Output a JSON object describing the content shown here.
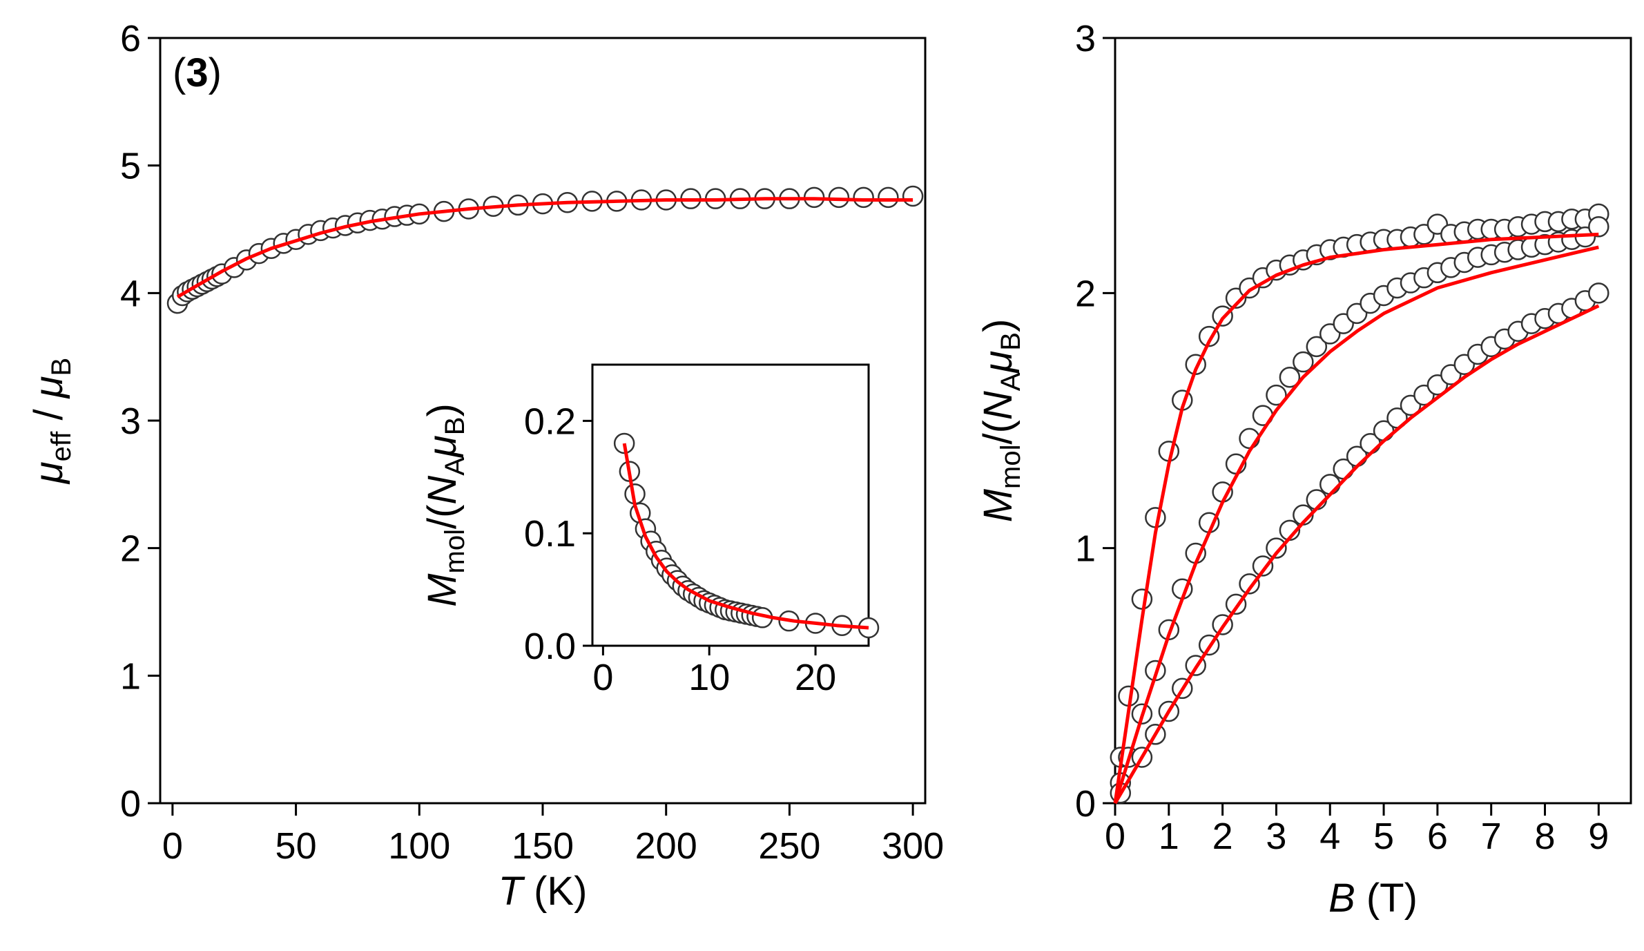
{
  "chart_data": [
    {
      "type": "scatter",
      "panel_label": "(3)",
      "xlabel": {
        "italic": "T",
        "rest": " (K)"
      },
      "ylabel": {
        "sym": "μ",
        "sub1": "eff",
        "sep": " / ",
        "sym2": "μ",
        "sub2": "B"
      },
      "xlim": [
        -5,
        305
      ],
      "ylim": [
        0,
        6
      ],
      "xticks": [
        0,
        50,
        100,
        150,
        200,
        250,
        300
      ],
      "yticks": [
        0,
        1,
        2,
        3,
        4,
        5,
        6
      ],
      "grid": false,
      "series": [
        {
          "kind": "points",
          "marker": "open-circle",
          "x": [
            2,
            4,
            6,
            8,
            10,
            12,
            14,
            16,
            18,
            20,
            25,
            30,
            35,
            40,
            45,
            50,
            55,
            60,
            65,
            70,
            75,
            80,
            85,
            90,
            95,
            100,
            110,
            120,
            130,
            140,
            150,
            160,
            170,
            180,
            190,
            200,
            210,
            220,
            230,
            240,
            250,
            260,
            270,
            280,
            290,
            300
          ],
          "y": [
            3.92,
            3.98,
            4.01,
            4.03,
            4.05,
            4.07,
            4.09,
            4.11,
            4.13,
            4.15,
            4.2,
            4.26,
            4.31,
            4.35,
            4.39,
            4.42,
            4.46,
            4.49,
            4.51,
            4.53,
            4.55,
            4.57,
            4.58,
            4.6,
            4.61,
            4.62,
            4.64,
            4.66,
            4.68,
            4.69,
            4.7,
            4.71,
            4.72,
            4.72,
            4.73,
            4.73,
            4.74,
            4.74,
            4.74,
            4.74,
            4.74,
            4.75,
            4.75,
            4.75,
            4.75,
            4.76
          ]
        },
        {
          "kind": "fit",
          "color": "#ff0000",
          "x": [
            2,
            10,
            20,
            30,
            40,
            50,
            60,
            70,
            80,
            100,
            120,
            140,
            160,
            180,
            200,
            220,
            240,
            260,
            280,
            300
          ],
          "y": [
            3.97,
            4.06,
            4.17,
            4.27,
            4.35,
            4.41,
            4.47,
            4.52,
            4.56,
            4.62,
            4.66,
            4.69,
            4.71,
            4.72,
            4.73,
            4.73,
            4.74,
            4.74,
            4.73,
            4.73
          ]
        }
      ]
    },
    {
      "type": "scatter",
      "role": "inset",
      "ylabel": {
        "sym": "M",
        "sub1": "mol",
        "sep": "/(",
        "sym2": "N",
        "sub2": "A",
        "sym3": "μ",
        "sub3": "B",
        "close": ")"
      },
      "xlim": [
        -1,
        25
      ],
      "ylim": [
        0,
        0.25
      ],
      "xticks": [
        0,
        10,
        20
      ],
      "yticks": [
        0.0,
        0.1,
        0.2
      ],
      "ytick_labels": [
        "0.0",
        "0.1",
        "0.2"
      ],
      "series": [
        {
          "kind": "points",
          "marker": "open-circle",
          "x": [
            2,
            2.5,
            3,
            3.5,
            4,
            4.5,
            5,
            5.5,
            6,
            6.5,
            7,
            7.5,
            8,
            8.5,
            9,
            9.5,
            10,
            10.5,
            11,
            11.5,
            12,
            12.5,
            13,
            13.5,
            14,
            14.5,
            15,
            17.5,
            20,
            22.5,
            25
          ],
          "y": [
            0.18,
            0.155,
            0.135,
            0.118,
            0.104,
            0.093,
            0.084,
            0.076,
            0.069,
            0.063,
            0.058,
            0.053,
            0.049,
            0.046,
            0.043,
            0.04,
            0.038,
            0.036,
            0.034,
            0.032,
            0.031,
            0.03,
            0.029,
            0.028,
            0.027,
            0.026,
            0.025,
            0.022,
            0.02,
            0.018,
            0.016
          ]
        },
        {
          "kind": "fit",
          "color": "#ff0000",
          "x": [
            2,
            3,
            4,
            5,
            6,
            7,
            8,
            10,
            12,
            14,
            16,
            18,
            20,
            22,
            25
          ],
          "y": [
            0.18,
            0.125,
            0.097,
            0.079,
            0.066,
            0.057,
            0.05,
            0.04,
            0.034,
            0.029,
            0.025,
            0.022,
            0.02,
            0.018,
            0.016
          ]
        }
      ]
    },
    {
      "type": "scatter",
      "xlabel": {
        "italic": "B",
        "rest": " (T)"
      },
      "ylabel": {
        "sym": "M",
        "sub1": "mol",
        "sep": "/(",
        "sym2": "N",
        "sub2": "A",
        "sym3": "μ",
        "sub3": "B",
        "close": ")"
      },
      "xlim": [
        0,
        9.6
      ],
      "ylim": [
        0,
        3
      ],
      "xticks": [
        0,
        1,
        2,
        3,
        4,
        5,
        6,
        7,
        8,
        9
      ],
      "yticks": [
        0,
        1,
        2,
        3
      ],
      "series": [
        {
          "kind": "points",
          "marker": "open-circle",
          "x": [
            0.1,
            0.25,
            0.5,
            0.75,
            1.0,
            1.25,
            1.5,
            1.75,
            2.0,
            2.25,
            2.5,
            2.75,
            3.0,
            3.25,
            3.5,
            3.75,
            4.0,
            4.25,
            4.5,
            4.75,
            5.0,
            5.25,
            5.5,
            5.75,
            6.0,
            6.25,
            6.5,
            6.75,
            7.0,
            7.25,
            7.5,
            7.75,
            8.0,
            8.25,
            8.5,
            8.75,
            9.0
          ],
          "y": [
            0.18,
            0.42,
            0.8,
            1.12,
            1.38,
            1.58,
            1.72,
            1.83,
            1.91,
            1.98,
            2.02,
            2.06,
            2.09,
            2.11,
            2.13,
            2.15,
            2.17,
            2.18,
            2.19,
            2.2,
            2.21,
            2.21,
            2.22,
            2.23,
            2.27,
            2.23,
            2.24,
            2.25,
            2.25,
            2.25,
            2.26,
            2.27,
            2.28,
            2.28,
            2.29,
            2.29,
            2.31
          ]
        },
        {
          "kind": "points",
          "marker": "open-circle",
          "x": [
            0.1,
            0.25,
            0.5,
            0.75,
            1.0,
            1.25,
            1.5,
            1.75,
            2.0,
            2.25,
            2.5,
            2.75,
            3.0,
            3.25,
            3.5,
            3.75,
            4.0,
            4.25,
            4.5,
            4.75,
            5.0,
            5.25,
            5.5,
            5.75,
            6.0,
            6.25,
            6.5,
            6.75,
            7.0,
            7.25,
            7.5,
            7.75,
            8.0,
            8.25,
            8.5,
            8.75,
            9.0
          ],
          "y": [
            0.08,
            0.18,
            0.35,
            0.52,
            0.68,
            0.84,
            0.98,
            1.1,
            1.22,
            1.33,
            1.43,
            1.52,
            1.6,
            1.67,
            1.73,
            1.79,
            1.84,
            1.88,
            1.92,
            1.96,
            1.99,
            2.02,
            2.04,
            2.06,
            2.08,
            2.1,
            2.12,
            2.14,
            2.15,
            2.16,
            2.17,
            2.18,
            2.19,
            2.2,
            2.21,
            2.22,
            2.26
          ]
        },
        {
          "kind": "points",
          "marker": "open-circle",
          "x": [
            0.1,
            0.5,
            0.75,
            1.0,
            1.25,
            1.5,
            1.75,
            2.0,
            2.25,
            2.5,
            2.75,
            3.0,
            3.25,
            3.5,
            3.75,
            4.0,
            4.25,
            4.5,
            4.75,
            5.0,
            5.25,
            5.5,
            5.75,
            6.0,
            6.25,
            6.5,
            6.75,
            7.0,
            7.25,
            7.5,
            7.75,
            8.0,
            8.25,
            8.5,
            8.75,
            9.0
          ],
          "y": [
            0.04,
            0.18,
            0.27,
            0.36,
            0.45,
            0.54,
            0.62,
            0.7,
            0.78,
            0.86,
            0.93,
            1.0,
            1.07,
            1.13,
            1.19,
            1.25,
            1.31,
            1.36,
            1.41,
            1.46,
            1.51,
            1.56,
            1.6,
            1.64,
            1.68,
            1.72,
            1.76,
            1.79,
            1.82,
            1.85,
            1.88,
            1.9,
            1.92,
            1.94,
            1.97,
            2.0
          ]
        },
        {
          "kind": "fit",
          "color": "#ff0000",
          "x": [
            0,
            0.25,
            0.5,
            0.75,
            1.0,
            1.25,
            1.5,
            1.75,
            2.0,
            2.5,
            3.0,
            3.5,
            4.0,
            5.0,
            6.0,
            7.0,
            8.0,
            9.0
          ],
          "y": [
            0,
            0.36,
            0.72,
            1.06,
            1.33,
            1.55,
            1.7,
            1.81,
            1.9,
            2.01,
            2.07,
            2.11,
            2.14,
            2.17,
            2.19,
            2.21,
            2.22,
            2.23
          ]
        },
        {
          "kind": "fit",
          "color": "#ff0000",
          "x": [
            0,
            0.5,
            1.0,
            1.5,
            2.0,
            2.5,
            3.0,
            3.5,
            4.0,
            4.5,
            5.0,
            5.5,
            6.0,
            7.0,
            8.0,
            9.0
          ],
          "y": [
            0,
            0.34,
            0.66,
            0.94,
            1.18,
            1.38,
            1.54,
            1.67,
            1.77,
            1.85,
            1.92,
            1.97,
            2.02,
            2.08,
            2.13,
            2.18
          ]
        },
        {
          "kind": "fit",
          "color": "#ff0000",
          "x": [
            0,
            0.5,
            1.0,
            1.5,
            2.0,
            2.5,
            3.0,
            3.5,
            4.0,
            4.5,
            5.0,
            5.5,
            6.0,
            6.5,
            7.0,
            7.5,
            8.0,
            8.5,
            9.0
          ],
          "y": [
            0,
            0.18,
            0.36,
            0.53,
            0.69,
            0.84,
            0.98,
            1.1,
            1.21,
            1.32,
            1.42,
            1.51,
            1.59,
            1.67,
            1.74,
            1.8,
            1.85,
            1.9,
            1.95
          ]
        }
      ]
    }
  ]
}
